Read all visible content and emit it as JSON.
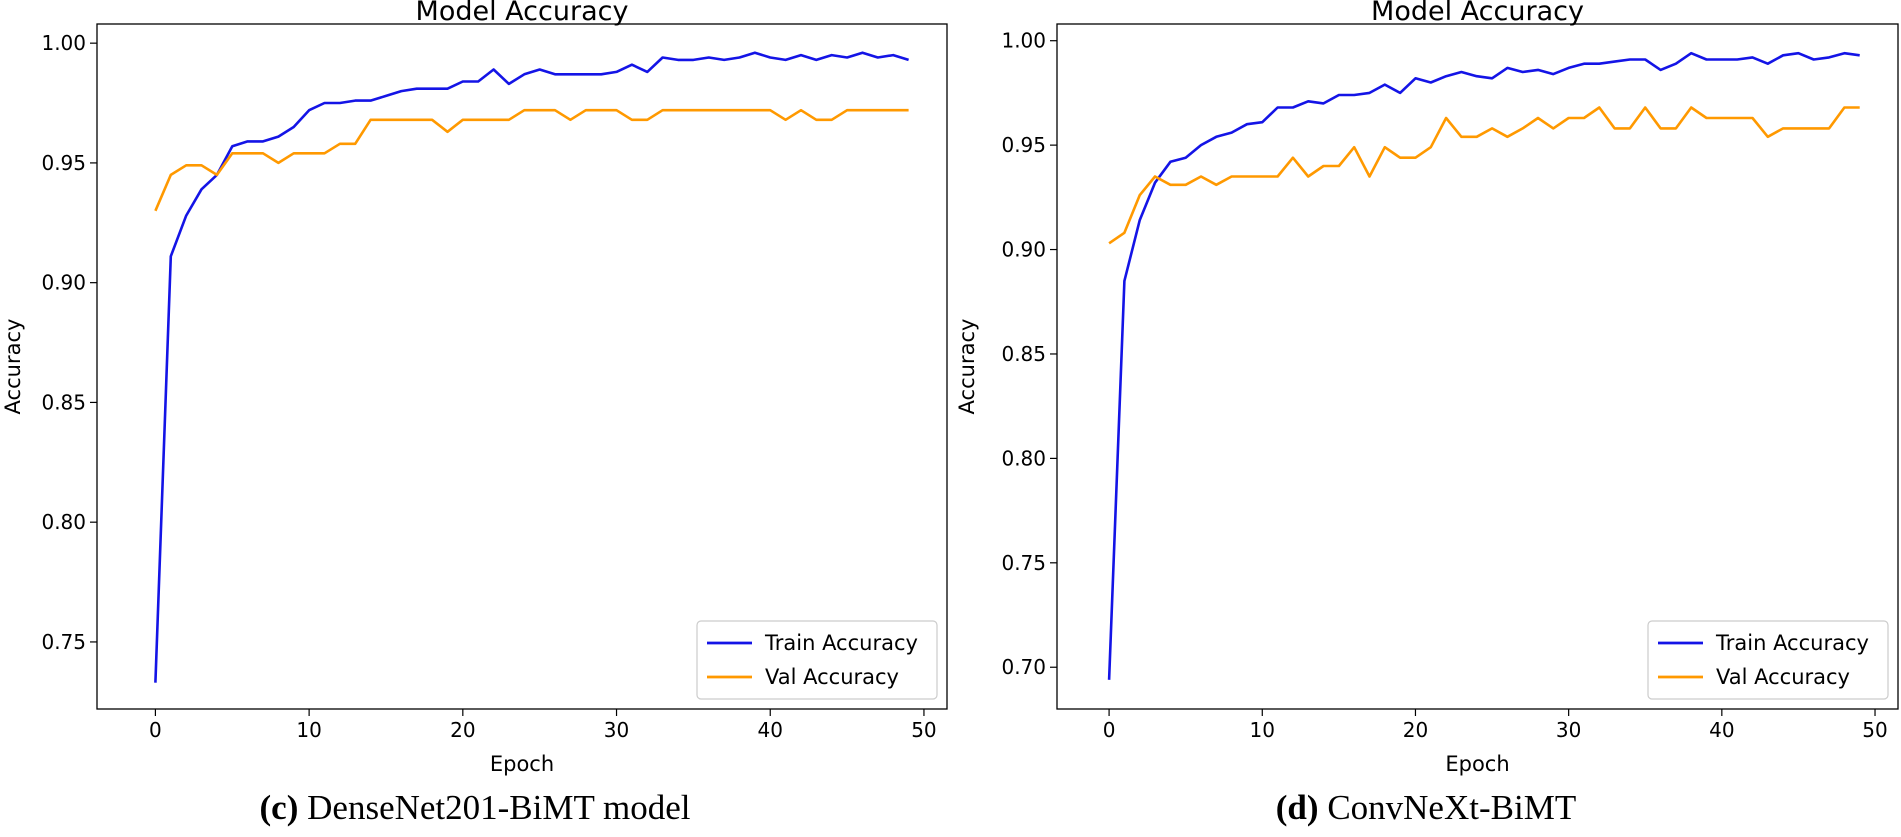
{
  "chart_data": [
    {
      "type": "line",
      "title": "Model Accuracy",
      "xlabel": "Epoch",
      "ylabel": "Accuracy",
      "xlim": [
        -3.8,
        51.5
      ],
      "ylim": [
        0.722,
        1.008
      ],
      "xticks": [
        0,
        10,
        20,
        30,
        40,
        50
      ],
      "yticks": [
        0.75,
        0.8,
        0.85,
        0.9,
        0.95,
        1.0
      ],
      "ytick_labels": [
        "0.75",
        "0.80",
        "0.85",
        "0.90",
        "0.95",
        "1.00"
      ],
      "grid": false,
      "legend_position": "lower right",
      "x": [
        0,
        1,
        2,
        3,
        4,
        5,
        6,
        7,
        8,
        9,
        10,
        11,
        12,
        13,
        14,
        15,
        16,
        17,
        18,
        19,
        20,
        21,
        22,
        23,
        24,
        25,
        26,
        27,
        28,
        29,
        30,
        31,
        32,
        33,
        34,
        35,
        36,
        37,
        38,
        39,
        40,
        41,
        42,
        43,
        44,
        45,
        46,
        47,
        48,
        49
      ],
      "series": [
        {
          "name": "Train Accuracy",
          "color": "#1414e6",
          "values": [
            0.733,
            0.911,
            0.928,
            0.939,
            0.945,
            0.957,
            0.959,
            0.959,
            0.961,
            0.965,
            0.972,
            0.975,
            0.975,
            0.976,
            0.976,
            0.978,
            0.98,
            0.981,
            0.981,
            0.981,
            0.984,
            0.984,
            0.989,
            0.983,
            0.987,
            0.989,
            0.987,
            0.987,
            0.987,
            0.987,
            0.988,
            0.991,
            0.988,
            0.994,
            0.993,
            0.993,
            0.994,
            0.993,
            0.994,
            0.996,
            0.994,
            0.993,
            0.995,
            0.993,
            0.995,
            0.994,
            0.996,
            0.994,
            0.995,
            0.993
          ]
        },
        {
          "name": "Val Accuracy",
          "color": "#ff9900",
          "values": [
            0.93,
            0.945,
            0.949,
            0.949,
            0.945,
            0.954,
            0.954,
            0.954,
            0.95,
            0.954,
            0.954,
            0.954,
            0.958,
            0.958,
            0.968,
            0.968,
            0.968,
            0.968,
            0.968,
            0.963,
            0.968,
            0.968,
            0.968,
            0.968,
            0.972,
            0.972,
            0.972,
            0.968,
            0.972,
            0.972,
            0.972,
            0.968,
            0.968,
            0.972,
            0.972,
            0.972,
            0.972,
            0.972,
            0.972,
            0.972,
            0.972,
            0.968,
            0.972,
            0.968,
            0.968,
            0.972,
            0.972,
            0.972,
            0.972,
            0.972
          ]
        }
      ],
      "caption_label": "(c)",
      "caption_text": " DenseNet201-BiMT model"
    },
    {
      "type": "line",
      "title": "Model Accuracy",
      "xlabel": "Epoch",
      "ylabel": "Accuracy",
      "xlim": [
        -3.4,
        51.5
      ],
      "ylim": [
        0.68,
        1.008
      ],
      "xticks": [
        0,
        10,
        20,
        30,
        40,
        50
      ],
      "yticks": [
        0.7,
        0.75,
        0.8,
        0.85,
        0.9,
        0.95,
        1.0
      ],
      "ytick_labels": [
        "0.70",
        "0.75",
        "0.80",
        "0.85",
        "0.90",
        "0.95",
        "1.00"
      ],
      "grid": false,
      "legend_position": "lower right",
      "x": [
        0,
        1,
        2,
        3,
        4,
        5,
        6,
        7,
        8,
        9,
        10,
        11,
        12,
        13,
        14,
        15,
        16,
        17,
        18,
        19,
        20,
        21,
        22,
        23,
        24,
        25,
        26,
        27,
        28,
        29,
        30,
        31,
        32,
        33,
        34,
        35,
        36,
        37,
        38,
        39,
        40,
        41,
        42,
        43,
        44,
        45,
        46,
        47,
        48,
        49
      ],
      "series": [
        {
          "name": "Train Accuracy",
          "color": "#1414e6",
          "values": [
            0.694,
            0.885,
            0.914,
            0.932,
            0.942,
            0.944,
            0.95,
            0.954,
            0.956,
            0.96,
            0.961,
            0.968,
            0.968,
            0.971,
            0.97,
            0.974,
            0.974,
            0.975,
            0.979,
            0.975,
            0.982,
            0.98,
            0.983,
            0.985,
            0.983,
            0.982,
            0.987,
            0.985,
            0.986,
            0.984,
            0.987,
            0.989,
            0.989,
            0.99,
            0.991,
            0.991,
            0.986,
            0.989,
            0.994,
            0.991,
            0.991,
            0.991,
            0.992,
            0.989,
            0.993,
            0.994,
            0.991,
            0.992,
            0.994,
            0.993
          ]
        },
        {
          "name": "Val Accuracy",
          "color": "#ff9900",
          "values": [
            0.903,
            0.908,
            0.926,
            0.935,
            0.931,
            0.931,
            0.935,
            0.931,
            0.935,
            0.935,
            0.935,
            0.935,
            0.944,
            0.935,
            0.94,
            0.94,
            0.949,
            0.935,
            0.949,
            0.944,
            0.944,
            0.949,
            0.963,
            0.954,
            0.954,
            0.958,
            0.954,
            0.958,
            0.963,
            0.958,
            0.963,
            0.963,
            0.968,
            0.958,
            0.958,
            0.968,
            0.958,
            0.958,
            0.968,
            0.963,
            0.963,
            0.963,
            0.963,
            0.954,
            0.958,
            0.958,
            0.958,
            0.958,
            0.968,
            0.968
          ]
        }
      ],
      "caption_label": "(d)",
      "caption_text": " ConvNeXt-BiMT"
    }
  ]
}
